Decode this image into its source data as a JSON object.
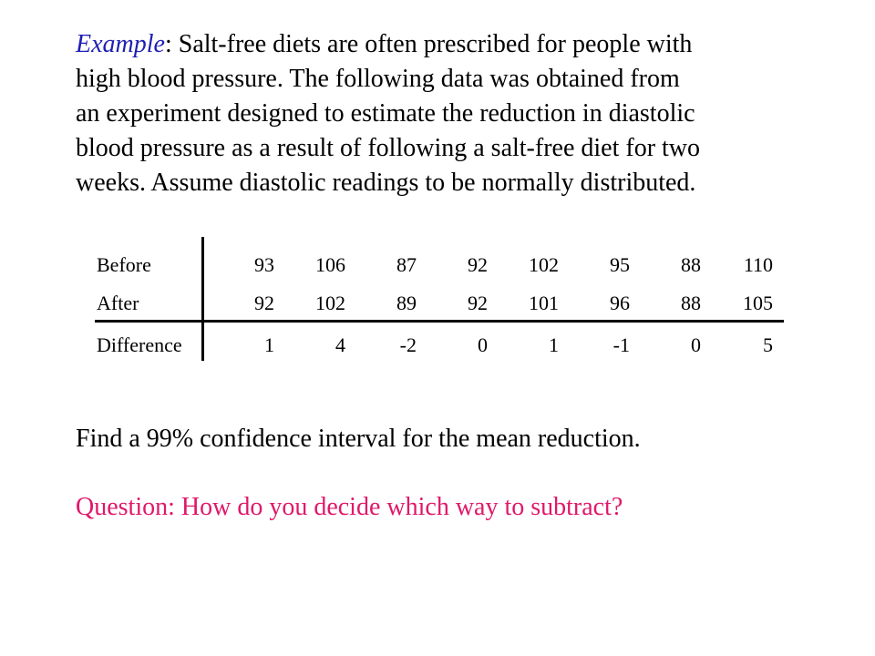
{
  "intro": {
    "example_word": "Example",
    "line1_rest": ": Salt-free diets are often prescribed for people with",
    "line2": "high blood pressure.  The following data was obtained from",
    "line3": "an experiment designed to estimate the reduction in diastolic",
    "line4": "blood pressure as a result of following a salt-free diet for two",
    "line5": "weeks.  Assume diastolic readings to be normally distributed."
  },
  "table": {
    "rows": [
      {
        "label": "Before",
        "values": [
          "93",
          "106",
          "87",
          "92",
          "102",
          "95",
          "88",
          "110"
        ]
      },
      {
        "label": "After",
        "values": [
          "92",
          "102",
          "89",
          "92",
          "101",
          "96",
          "88",
          "105"
        ]
      },
      {
        "label": "Difference",
        "values": [
          "1",
          "4",
          "-2",
          "0",
          "1",
          "-1",
          "0",
          "5"
        ]
      }
    ]
  },
  "find_text": "Find a 99% confidence interval for the mean reduction.",
  "question_text": "Question:  How do you decide which way to subtract?",
  "colors": {
    "example_word": "#1f1fb4",
    "question": "#e0186a"
  }
}
